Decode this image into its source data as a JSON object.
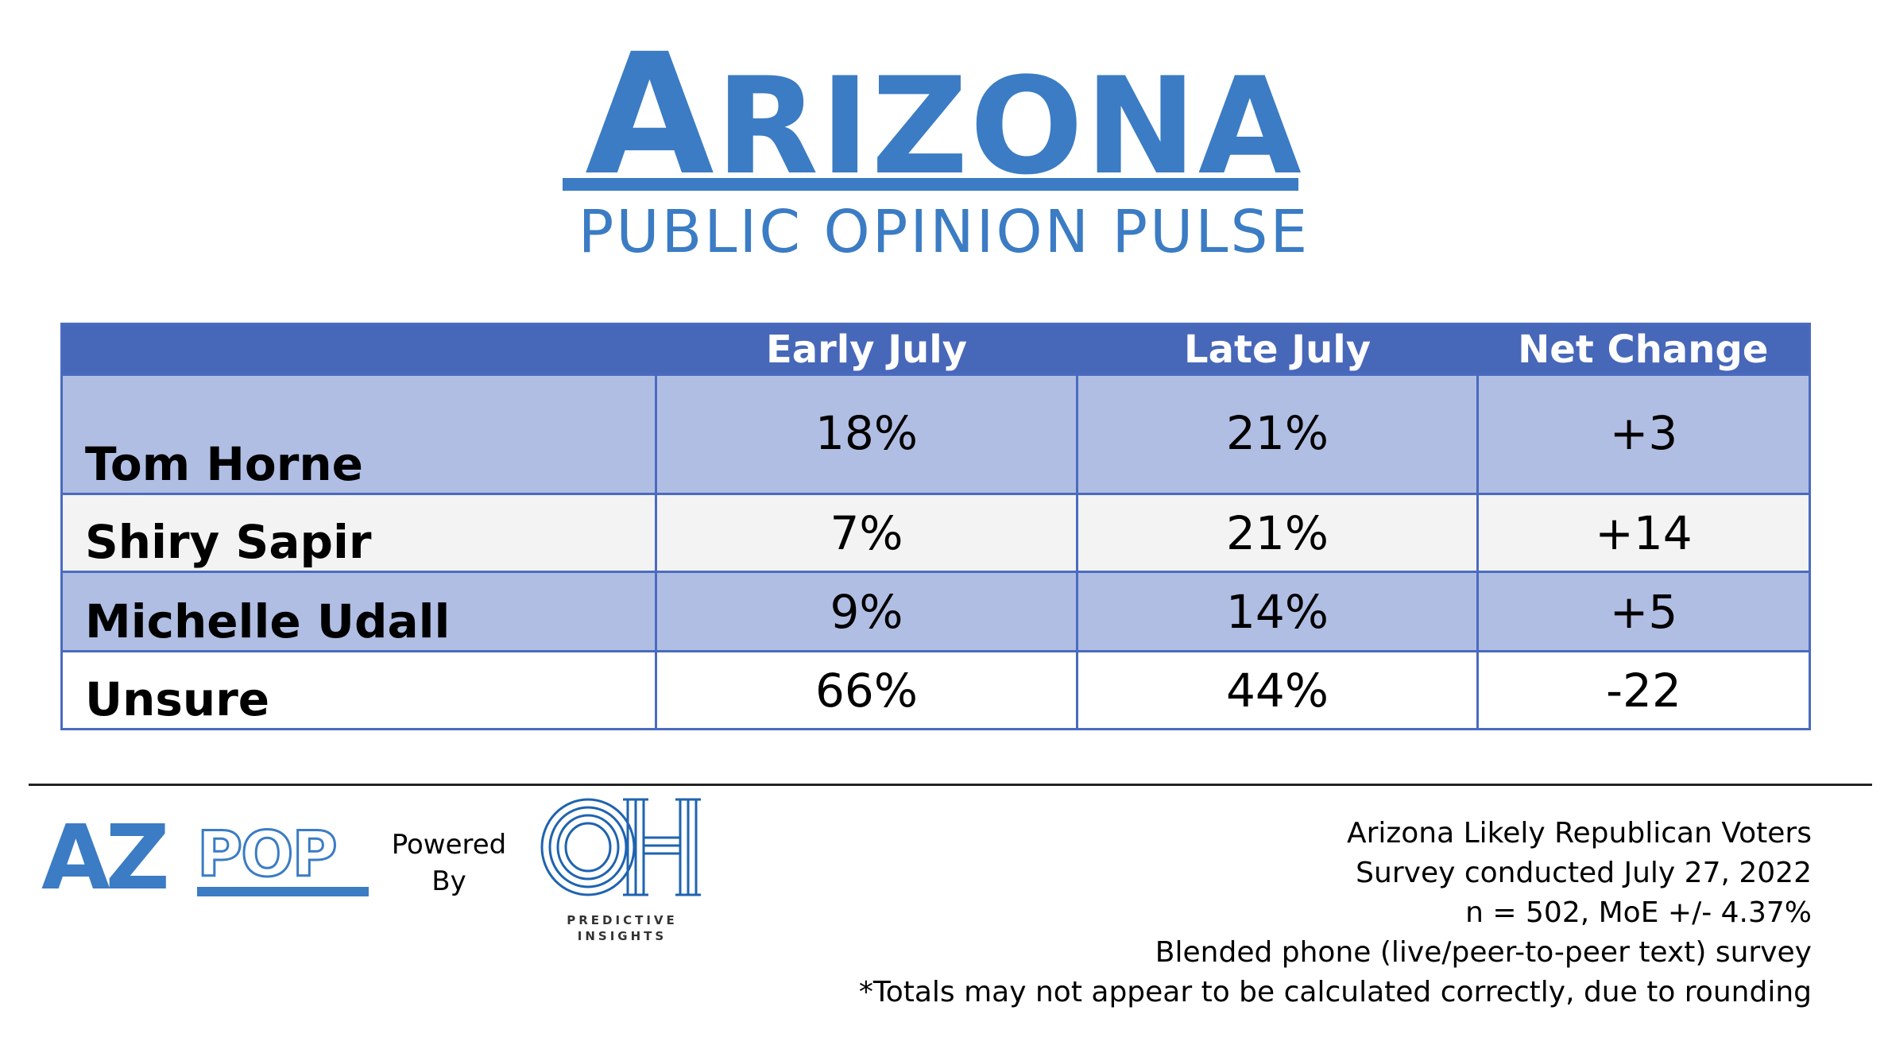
{
  "brand": {
    "title_first": "A",
    "title_rest": "RIZONA",
    "subtitle": "PUBLIC OPINION PULSE",
    "accent_color": "#3b7cc4"
  },
  "chart_data": {
    "type": "table",
    "columns": [
      "",
      "Early July",
      "Late July",
      "Net Change"
    ],
    "rows": [
      {
        "name": "Tom Horne",
        "early_july": "18%",
        "late_july": "21%",
        "net_change": "+3"
      },
      {
        "name": "Shiry Sapir",
        "early_july": "7%",
        "late_july": "21%",
        "net_change": "+14"
      },
      {
        "name": "Michelle Udall",
        "early_july": "9%",
        "late_july": "14%",
        "net_change": "+5"
      },
      {
        "name": "Unsure",
        "early_july": "66%",
        "late_july": "44%",
        "net_change": "-22"
      }
    ],
    "header_color": "#4767b9",
    "band_color": "#b1bee3"
  },
  "footer": {
    "azpop_logo": "AZPOP",
    "powered_line1": "Powered",
    "powered_line2": "By",
    "oh_logo": "OH",
    "oh_caption_line1": "PREDICTIVE",
    "oh_caption_line2": "INSIGHTS",
    "notes": [
      "Arizona Likely Republican Voters",
      "Survey conducted July 27, 2022",
      "n = 502, MoE +/- 4.37%",
      "Blended phone (live/peer-to-peer text) survey",
      "*Totals may not appear to be calculated correctly, due to rounding"
    ]
  }
}
